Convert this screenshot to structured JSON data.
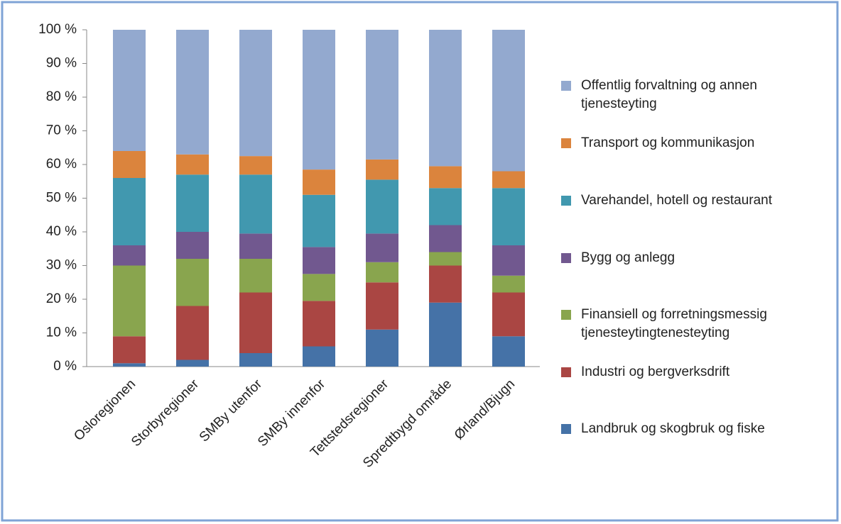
{
  "chart_data": {
    "type": "bar",
    "stacked": true,
    "categories": [
      "Osloregionen",
      "Storbyregioner",
      "SMBy utenfor",
      "SMBy innenfor",
      "Tettstedsregioner",
      "Spredtbygd område",
      "Ørland/Bjugn"
    ],
    "series": [
      {
        "name": "Landbruk og skogbruk og fiske",
        "color": "#4572a7",
        "values": [
          1,
          2,
          4,
          6,
          11,
          19,
          9
        ]
      },
      {
        "name": "Industri og bergverksdrift",
        "color": "#aa4643",
        "values": [
          8,
          16,
          18,
          13.5,
          14,
          11,
          13
        ]
      },
      {
        "name": "Finansiell og forretningsmessig tjenesteytingtenesteyting",
        "color": "#89a54e",
        "values": [
          21,
          14,
          10,
          8,
          6,
          4,
          5
        ]
      },
      {
        "name": "Bygg og anlegg",
        "color": "#71588f",
        "values": [
          6,
          8,
          7.5,
          8,
          8.5,
          8,
          9
        ]
      },
      {
        "name": "Varehandel, hotell og restaurant",
        "color": "#4198af",
        "values": [
          20,
          17,
          17.5,
          15.5,
          16,
          11,
          17
        ]
      },
      {
        "name": "Transport og kommunikasjon",
        "color": "#db843d",
        "values": [
          8,
          6,
          5.5,
          7.5,
          6,
          6.5,
          5
        ]
      },
      {
        "name": "Offentlig forvaltning og annen tjenesteyting",
        "color": "#93a9cf",
        "values": [
          36,
          37,
          37.5,
          41.5,
          38.5,
          40.5,
          42
        ]
      }
    ],
    "ylim": [
      0,
      100
    ],
    "yticks": [
      {
        "value": 0,
        "label": "0 %"
      },
      {
        "value": 10,
        "label": "10 %"
      },
      {
        "value": 20,
        "label": "20 %"
      },
      {
        "value": 30,
        "label": "30 %"
      },
      {
        "value": 40,
        "label": "40 %"
      },
      {
        "value": 50,
        "label": "50 %"
      },
      {
        "value": 60,
        "label": "60 %"
      },
      {
        "value": 70,
        "label": "70 %"
      },
      {
        "value": 80,
        "label": "80 %"
      },
      {
        "value": 90,
        "label": "90 %"
      },
      {
        "value": 100,
        "label": "100 %"
      }
    ],
    "legend": "right"
  }
}
